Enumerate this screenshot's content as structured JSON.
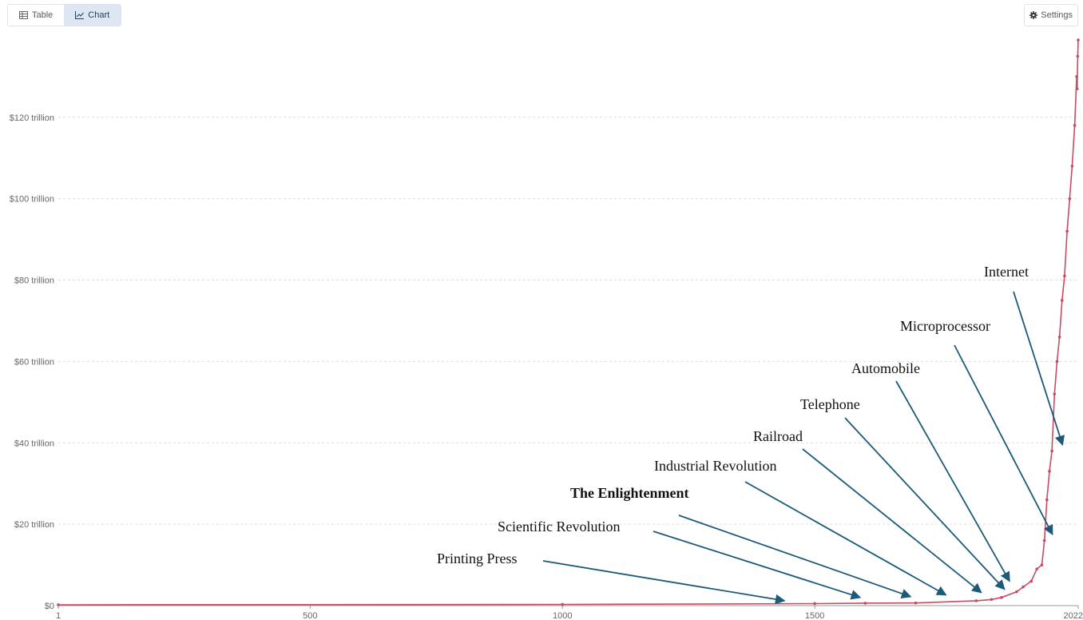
{
  "toolbar": {
    "table_label": "Table",
    "chart_label": "Chart",
    "settings_label": "Settings",
    "active_tab": "Chart"
  },
  "colors": {
    "line": "#c84a63",
    "arrow": "#1c5a7a",
    "grid": "#dddddd",
    "active_tab_bg": "#dde6f1"
  },
  "chart_data": {
    "type": "line",
    "title": "",
    "xlabel": "",
    "ylabel": "",
    "xlim": [
      1,
      2022
    ],
    "ylim": [
      0,
      139
    ],
    "x_ticks": [
      {
        "value": 1,
        "label": "1"
      },
      {
        "value": 500,
        "label": "500"
      },
      {
        "value": 1000,
        "label": "1000"
      },
      {
        "value": 1500,
        "label": "1500"
      },
      {
        "value": 2022,
        "label": "2022"
      }
    ],
    "y_ticks": [
      {
        "value": 0,
        "label": "$0"
      },
      {
        "value": 20,
        "label": "$20 trillion"
      },
      {
        "value": 40,
        "label": "$40 trillion"
      },
      {
        "value": 60,
        "label": "$60 trillion"
      },
      {
        "value": 80,
        "label": "$80 trillion"
      },
      {
        "value": 100,
        "label": "$100 trillion"
      },
      {
        "value": 120,
        "label": "$120 trillion"
      }
    ],
    "grid": "horizontal dashed",
    "series": [
      {
        "color": "#c84a63",
        "x": [
          1,
          1000,
          1500,
          1600,
          1700,
          1820,
          1850,
          1870,
          1900,
          1913,
          1929,
          1940,
          1950,
          1955,
          1960,
          1965,
          1970,
          1975,
          1980,
          1985,
          1990,
          1995,
          2000,
          2005,
          2010,
          2015,
          2019,
          2020,
          2021,
          2022
        ],
        "y": [
          0.2,
          0.3,
          0.5,
          0.6,
          0.65,
          1.2,
          1.5,
          2.0,
          3.4,
          4.6,
          6.0,
          9.0,
          10.0,
          16.0,
          26.0,
          33.0,
          38.0,
          52.0,
          60.0,
          66.0,
          75.0,
          81.0,
          92.0,
          100.0,
          108.0,
          118.0,
          130.0,
          127.0,
          135.0,
          139.0
        ]
      }
    ],
    "annotations": [
      {
        "text": "Printing Press",
        "year": 1440,
        "value": 1.2,
        "bold": false
      },
      {
        "text": "Scientific Revolution",
        "year": 1590,
        "value": 2.0,
        "bold": false
      },
      {
        "text": "The Enlightenment",
        "year": 1690,
        "value": 2.2,
        "bold": false,
        "bold_flag": true
      },
      {
        "text": "Industrial Revolution",
        "year": 1760,
        "value": 2.6,
        "bold": false
      },
      {
        "text": "Railroad",
        "year": 1830,
        "value": 3.2,
        "bold": false
      },
      {
        "text": "Telephone",
        "year": 1876,
        "value": 4.0,
        "bold": false
      },
      {
        "text": "Automobile",
        "year": 1886,
        "value": 6.0,
        "bold": false
      },
      {
        "text": "Microprocessor",
        "year": 1971,
        "value": 17.5,
        "bold": false
      },
      {
        "text": "Internet",
        "year": 1991,
        "value": 39.5,
        "bold": false
      }
    ]
  }
}
